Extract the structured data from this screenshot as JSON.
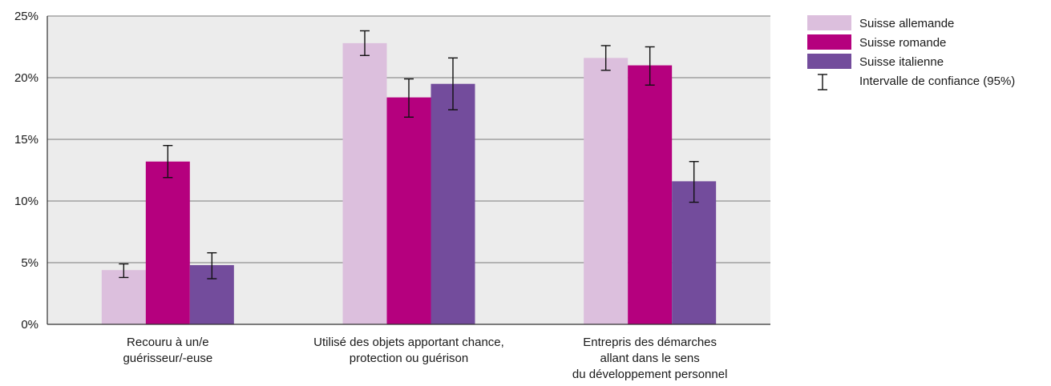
{
  "chart_data": {
    "type": "bar",
    "categories": [
      [
        "Recouru à un/e",
        "guérisseur/-euse"
      ],
      [
        "Utilisé des objets apportant chance,",
        "protection ou guérison"
      ],
      [
        "Entrepris des démarches",
        "allant dans le sens",
        "du développement personnel"
      ]
    ],
    "series": [
      {
        "name": "Suisse allemande",
        "color": "#dcbfdd",
        "values": [
          4.4,
          22.8,
          21.6
        ],
        "ci_low": [
          3.8,
          21.8,
          20.6
        ],
        "ci_high": [
          4.9,
          23.8,
          22.6
        ]
      },
      {
        "name": "Suisse romande",
        "color": "#b5007e",
        "values": [
          13.2,
          18.4,
          21.0
        ],
        "ci_low": [
          11.9,
          16.8,
          19.4
        ],
        "ci_high": [
          14.5,
          19.9,
          22.5
        ]
      },
      {
        "name": "Suisse italienne",
        "color": "#734c9c",
        "values": [
          4.8,
          19.5,
          11.6
        ],
        "ci_low": [
          3.7,
          17.4,
          9.9
        ],
        "ci_high": [
          5.8,
          21.6,
          13.2
        ]
      }
    ],
    "yticks": [
      "0%",
      "5%",
      "10%",
      "15%",
      "20%",
      "25%"
    ],
    "ylim": [
      0,
      25
    ],
    "grid": true,
    "plot_background": "#ececec",
    "legend_position": "top-right",
    "ci_legend_label": "Intervalle de confiance (95%)"
  }
}
